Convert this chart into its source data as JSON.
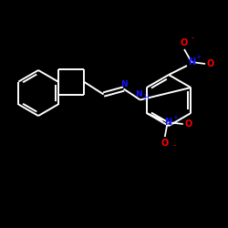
{
  "bg_color": "#000000",
  "bond_color": "#ffffff",
  "n_color": "#1414ff",
  "o_color": "#ff0000",
  "lw": 1.4,
  "figsize": [
    2.5,
    2.5
  ],
  "dpi": 100,
  "xlim": [
    0,
    250
  ],
  "ylim": [
    0,
    250
  ]
}
